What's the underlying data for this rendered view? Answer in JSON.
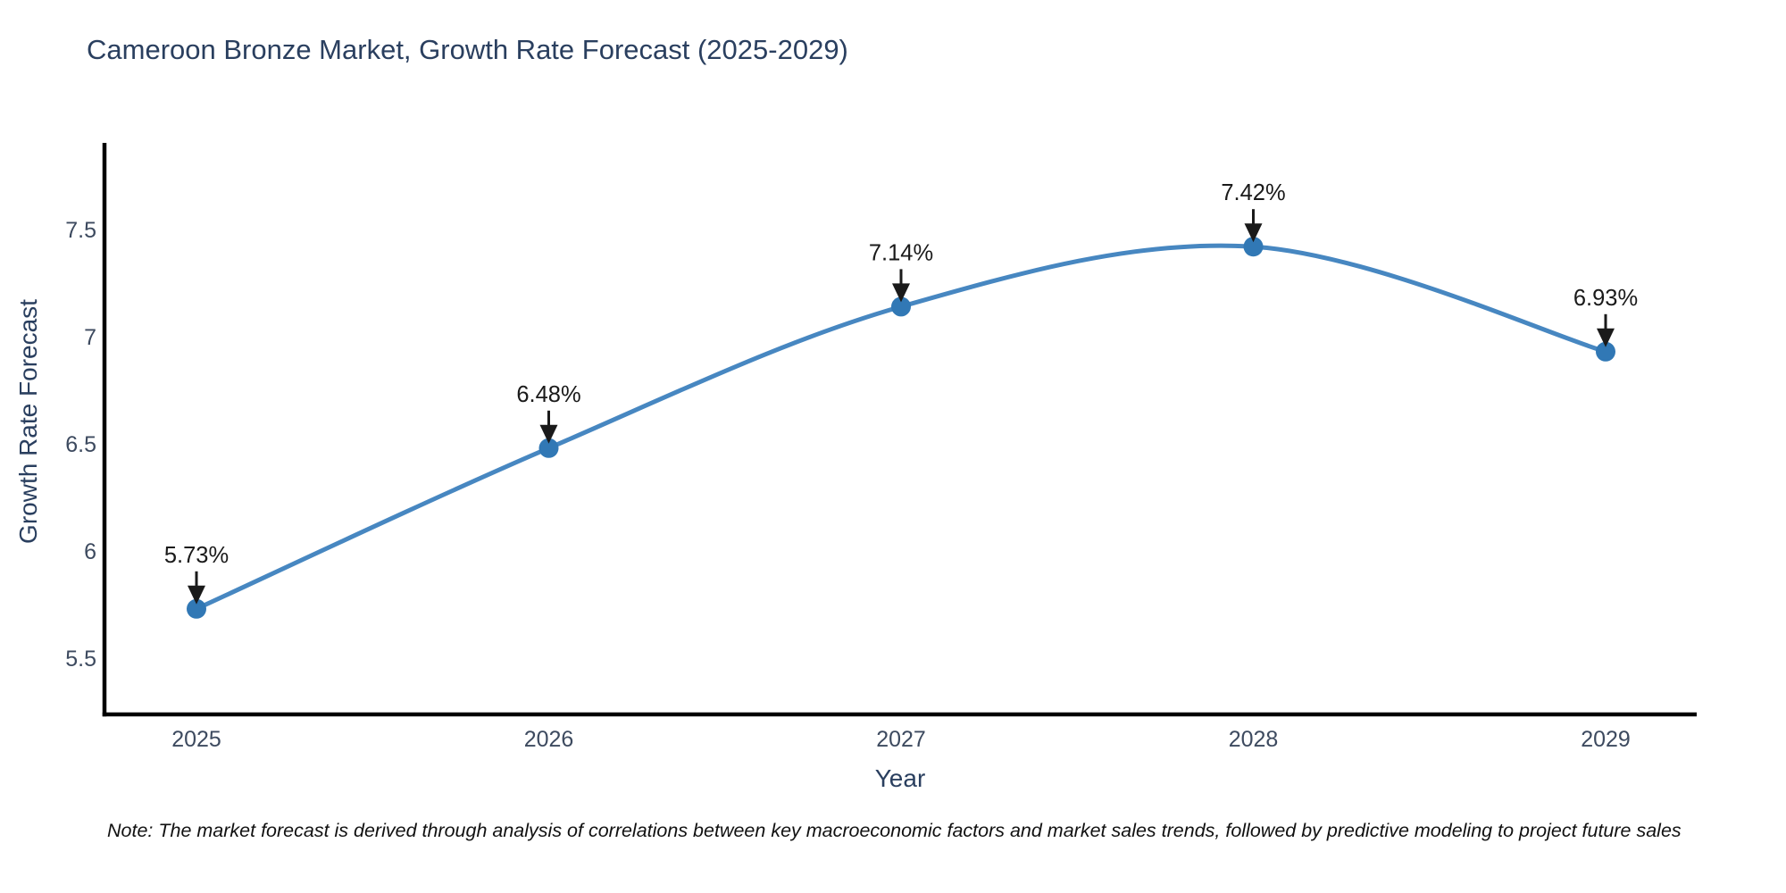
{
  "title": "Cameroon Bronze Market, Growth Rate Forecast (2025-2029)",
  "note": "Note: The market forecast is derived through analysis of correlations between key macroeconomic factors and market sales trends, followed by predictive modeling to project future sales",
  "chart_data": {
    "type": "line",
    "title": "Cameroon Bronze Market, Growth Rate Forecast (2025-2029)",
    "xlabel": "Year",
    "ylabel": "Growth Rate Forecast",
    "x": [
      2025,
      2026,
      2027,
      2028,
      2029
    ],
    "values": [
      5.73,
      6.48,
      7.14,
      7.42,
      6.93
    ],
    "point_labels": [
      "5.73%",
      "6.48%",
      "7.14%",
      "7.42%",
      "6.93%"
    ],
    "xtick_labels": [
      "2025",
      "2026",
      "2027",
      "2028",
      "2029"
    ],
    "yticks": [
      5.5,
      6,
      6.5,
      7,
      7.5
    ],
    "ytick_labels": [
      "5.5",
      "6",
      "6.5",
      "7",
      "7.5"
    ],
    "ylim": [
      5.24,
      7.9
    ],
    "grid": false,
    "legend": "none",
    "line_shape": "spline",
    "annotation_arrows": true,
    "colors": {
      "line": "#4787c1",
      "marker": "#3178b5",
      "axis": "#000000",
      "title_text": "#2a3f5f",
      "tick_text": "#3d4a5f",
      "annotation_text": "#1a1a1a",
      "note_text": "#111111",
      "background": "#ffffff"
    }
  }
}
